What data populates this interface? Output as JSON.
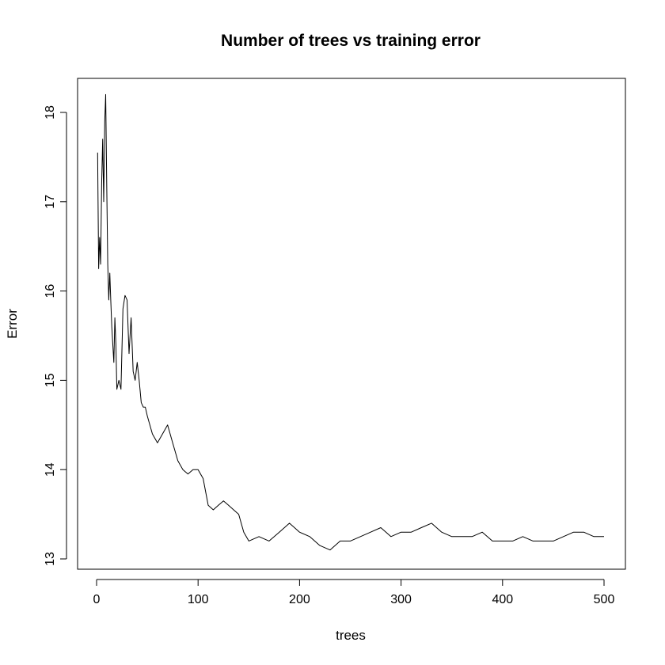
{
  "chart_data": {
    "type": "line",
    "title": "Number of trees vs training error",
    "xlabel": "trees",
    "ylabel": "Error",
    "xlim": [
      0,
      500
    ],
    "ylim": [
      13,
      18
    ],
    "xticks": [
      0,
      100,
      200,
      300,
      400,
      500
    ],
    "yticks": [
      13,
      14,
      15,
      16,
      17,
      18
    ],
    "grid": false,
    "legend": "none",
    "line_color": "#000000",
    "series": [
      {
        "x": [
          1,
          2,
          3,
          4,
          5,
          6,
          7,
          8,
          9,
          10,
          11,
          12,
          13,
          14,
          15,
          16,
          17,
          18,
          19,
          20,
          22,
          24,
          26,
          28,
          30,
          32,
          34,
          36,
          38,
          40,
          42,
          44,
          46,
          48,
          50,
          55,
          60,
          65,
          70,
          75,
          80,
          85,
          90,
          95,
          100,
          105,
          110,
          115,
          120,
          125,
          130,
          135,
          140,
          145,
          150,
          160,
          170,
          180,
          190,
          195,
          200,
          210,
          220,
          230,
          240,
          250,
          260,
          270,
          280,
          290,
          300,
          310,
          320,
          330,
          340,
          350,
          360,
          370,
          380,
          390,
          400,
          410,
          420,
          430,
          440,
          450,
          460,
          470,
          480,
          490,
          500
        ],
        "y": [
          17.55,
          16.25,
          16.6,
          16.3,
          17.2,
          17.7,
          17.0,
          17.9,
          18.2,
          17.2,
          16.3,
          15.9,
          16.2,
          15.9,
          15.6,
          15.4,
          15.2,
          15.7,
          15.4,
          14.9,
          15.0,
          14.9,
          15.8,
          15.95,
          15.9,
          15.3,
          15.7,
          15.1,
          15.0,
          15.2,
          15.0,
          14.75,
          14.7,
          14.7,
          14.6,
          14.4,
          14.3,
          14.4,
          14.5,
          14.3,
          14.1,
          14.0,
          13.95,
          14.0,
          14.0,
          13.9,
          13.6,
          13.55,
          13.6,
          13.65,
          13.6,
          13.55,
          13.5,
          13.3,
          13.2,
          13.25,
          13.2,
          13.3,
          13.4,
          13.35,
          13.3,
          13.25,
          13.15,
          13.1,
          13.2,
          13.2,
          13.25,
          13.3,
          13.35,
          13.25,
          13.3,
          13.3,
          13.35,
          13.4,
          13.3,
          13.25,
          13.25,
          13.25,
          13.3,
          13.2,
          13.2,
          13.2,
          13.25,
          13.2,
          13.2,
          13.2,
          13.25,
          13.3,
          13.3,
          13.25,
          13.25
        ]
      }
    ]
  }
}
